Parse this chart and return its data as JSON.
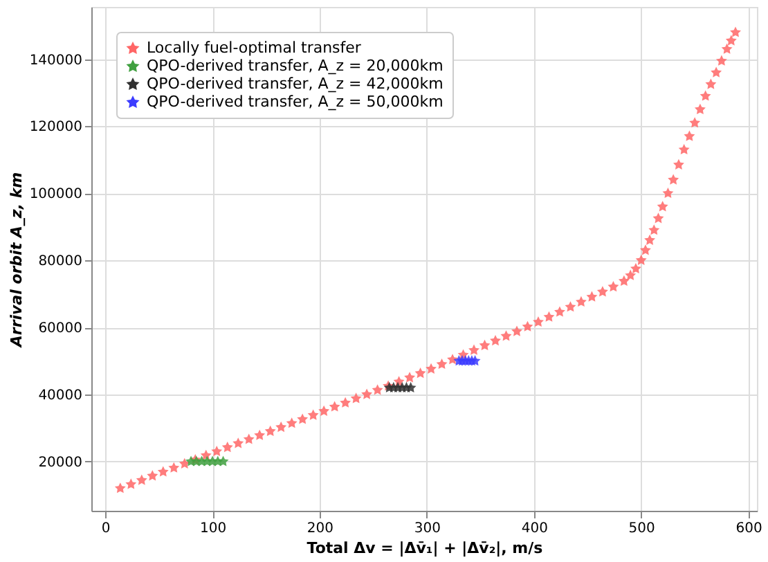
{
  "chart_data": {
    "type": "scatter",
    "xlabel": "Total Δv = |Δv̄₁| + |Δv̄₂|, m/s",
    "ylabel": "Arrival orbit A_z, km",
    "xlim": [
      -13,
      608
    ],
    "ylim": [
      5300,
      155600
    ],
    "xticks": [
      0,
      100,
      200,
      300,
      400,
      500,
      600
    ],
    "yticks": [
      20000,
      40000,
      60000,
      80000,
      100000,
      120000,
      140000
    ],
    "grid": true,
    "legend": "top left",
    "marker": "star",
    "series": [
      {
        "name": "Locally fuel-optimal transfer",
        "color": "#ff6666",
        "x": [
          14,
          24,
          34,
          44,
          54,
          64,
          74,
          84,
          94,
          104,
          114,
          124,
          134,
          144,
          154,
          164,
          174,
          184,
          194,
          204,
          214,
          224,
          234,
          244,
          254,
          264,
          274,
          284,
          294,
          304,
          314,
          324,
          334,
          344,
          354,
          364,
          374,
          384,
          394,
          404,
          414,
          424,
          434,
          444,
          454,
          464,
          474,
          484,
          490,
          495,
          500,
          504,
          508,
          512,
          516,
          520,
          525,
          530,
          535,
          540,
          545,
          550,
          555,
          560,
          565,
          570,
          575,
          580,
          584,
          588
        ],
        "values": [
          12000,
          13200,
          14400,
          15700,
          16900,
          18100,
          19300,
          20500,
          21800,
          23000,
          24200,
          25400,
          26600,
          27800,
          29000,
          30200,
          31400,
          32600,
          33800,
          35000,
          36300,
          37500,
          38800,
          40000,
          41300,
          42500,
          43800,
          45000,
          46300,
          47600,
          49000,
          50400,
          51800,
          53200,
          54600,
          56000,
          57400,
          58800,
          60200,
          61600,
          63100,
          64600,
          66100,
          67600,
          69100,
          70600,
          72100,
          73800,
          75500,
          77500,
          80000,
          83000,
          86000,
          89000,
          92500,
          96000,
          100000,
          104000,
          108500,
          113000,
          117000,
          121000,
          125000,
          129000,
          132500,
          136000,
          139500,
          143000,
          145500,
          148000
        ]
      },
      {
        "name": "QPO-derived transfer, A_z = 20,000km",
        "color": "#40a040",
        "x": [
          80,
          85,
          90,
          95,
          100,
          105,
          110
        ],
        "values": [
          20000,
          20000,
          20000,
          20000,
          20000,
          20000,
          20000
        ]
      },
      {
        "name": "QPO-derived transfer, A_z = 42,000km",
        "color": "#303030",
        "x": [
          265,
          269,
          273,
          277,
          281,
          285
        ],
        "values": [
          42000,
          42000,
          42000,
          42000,
          42000,
          42000
        ]
      },
      {
        "name": "QPO-derived transfer, A_z = 50,000km",
        "color": "#3c3cff",
        "x": [
          330,
          333,
          336,
          339,
          342,
          345
        ],
        "values": [
          50000,
          50000,
          50000,
          50000,
          50000,
          50000
        ]
      }
    ]
  }
}
